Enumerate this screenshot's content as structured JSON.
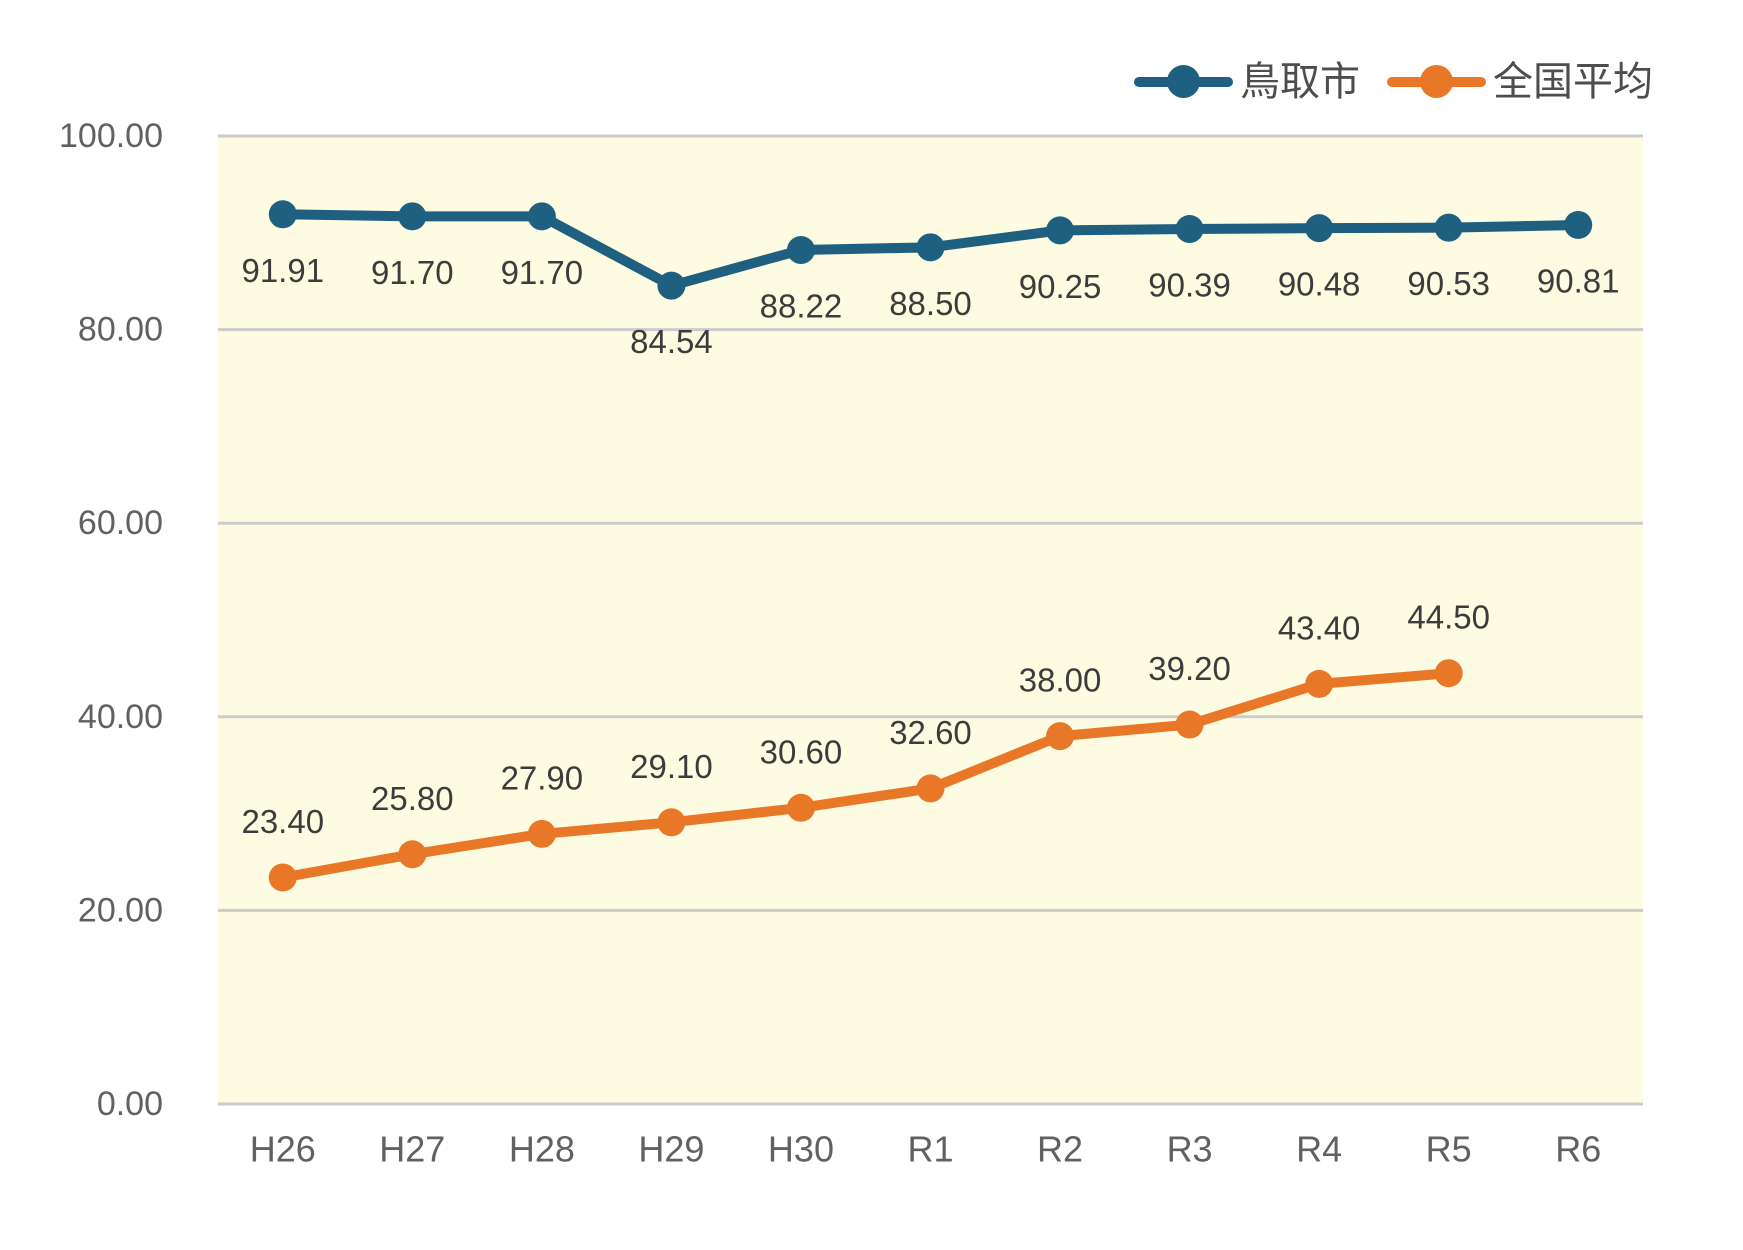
{
  "chart_data": {
    "type": "line",
    "categories": [
      "H26",
      "H27",
      "H28",
      "H29",
      "H30",
      "R1",
      "R2",
      "R3",
      "R4",
      "R5",
      "R6"
    ],
    "series": [
      {
        "id": "tottori-city",
        "name": "鳥取市",
        "color": "#1F5F7F",
        "values": [
          91.91,
          91.7,
          91.7,
          84.54,
          88.22,
          88.5,
          90.25,
          90.39,
          90.48,
          90.53,
          90.81
        ],
        "labels": [
          "91.91",
          "91.70",
          "91.70",
          "84.54",
          "88.22",
          "88.50",
          "90.25",
          "90.39",
          "90.48",
          "90.53",
          "90.81"
        ],
        "label_position": "below"
      },
      {
        "id": "national-average",
        "name": "全国平均",
        "color": "#E87728",
        "values": [
          23.4,
          25.8,
          27.9,
          29.1,
          30.6,
          32.6,
          38.0,
          39.2,
          43.4,
          44.5,
          null
        ],
        "labels": [
          "23.40",
          "25.80",
          "27.90",
          "29.10",
          "30.60",
          "32.60",
          "38.00",
          "39.20",
          "43.40",
          "44.50",
          null
        ],
        "label_position": "above"
      }
    ],
    "y_ticks": [
      0,
      20,
      40,
      60,
      80,
      100
    ],
    "y_tick_labels": [
      "0.00",
      "20.00",
      "40.00",
      "60.00",
      "80.00",
      "100.00"
    ],
    "ylim": [
      0,
      100
    ],
    "grid": true,
    "legend_position": "top-right",
    "plot_bg_color": "#FDFCE2",
    "grid_color": "#CBCBC9",
    "axis_label_color": "#616161",
    "value_label_color": "#3C3C3C",
    "legend_text_color": "#4D4D4D"
  }
}
